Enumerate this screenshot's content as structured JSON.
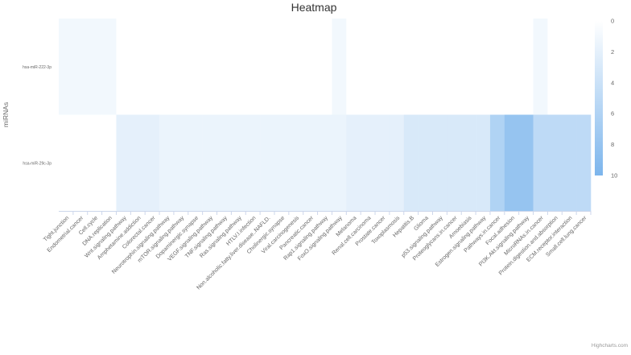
{
  "chart_data": {
    "type": "heatmap",
    "title": "Heatmap",
    "ylabel": "miRNAs",
    "xlabel": "",
    "credits": "Highcharts.com",
    "colorscale": {
      "min": 0,
      "max": 10,
      "ticks": [
        0,
        2,
        4,
        6,
        8,
        10
      ],
      "min_color": "#ffffff",
      "max_color": "#7cb5ec"
    },
    "y_categories": [
      "hsa-miR-222-3p",
      "hsa-miR-29c-3p"
    ],
    "x_categories": [
      "Tight.junction",
      "Endometrial.cancer",
      "Cell.cycle",
      "DNA.replication",
      "Wnt.signaling.pathway",
      "Amphetamine.addiction",
      "Colorectal.cancer",
      "Neurotrophin.signaling.pathway",
      "mTOR.signaling.pathway",
      "Dopaminergic.synapse",
      "VEGF.signaling.pathway",
      "TNF.signaling.pathway",
      "Ras.signaling.pathway",
      "HTLV.I.infection",
      "Non.alcoholic.fatty.liver.disease..NAFLD.",
      "Cholinergic.synapse",
      "Viral.carcinogenesis",
      "Pancreatic.cancer",
      "Rap1.signaling.pathway",
      "FoxO.signaling.pathway",
      "Melanoma",
      "Renal.cell.carcinoma",
      "Prostate.cancer",
      "Toxoplasmosis",
      "Hepatitis.B",
      "Glioma",
      "p53.signaling.pathway",
      "Proteoglycans.in.cancer",
      "Amoebiasis",
      "Estrogen.signaling.pathway",
      "Pathways.in.cancer",
      "Focal.adhesion",
      "PI3K.Akt.signaling.pathway",
      "MicroRNAs.in.cancer",
      "Protein.digestion.and.absorption",
      "ECM.receptor.interaction",
      "Small.cell.lung.cancer"
    ],
    "series": [
      {
        "name": "hsa-miR-222-3p",
        "values": [
          1,
          1,
          1,
          1,
          0,
          0,
          0,
          0,
          0,
          0,
          0,
          0,
          0,
          0,
          0,
          0,
          0,
          0,
          0,
          1,
          0,
          0,
          0,
          0,
          0,
          0,
          0,
          0,
          0,
          0,
          0,
          0,
          0,
          1,
          0,
          0,
          0
        ]
      },
      {
        "name": "hsa-miR-29c-3p",
        "values": [
          0,
          0,
          0,
          0,
          2,
          2,
          2,
          1.5,
          1.5,
          1.5,
          1.5,
          1.5,
          1.5,
          1.5,
          1.5,
          1.5,
          1.5,
          1.5,
          1.5,
          1.5,
          2,
          2,
          2,
          2,
          3,
          3,
          3,
          3,
          3,
          3,
          6,
          8,
          8,
          5,
          5,
          5,
          5
        ]
      }
    ]
  }
}
